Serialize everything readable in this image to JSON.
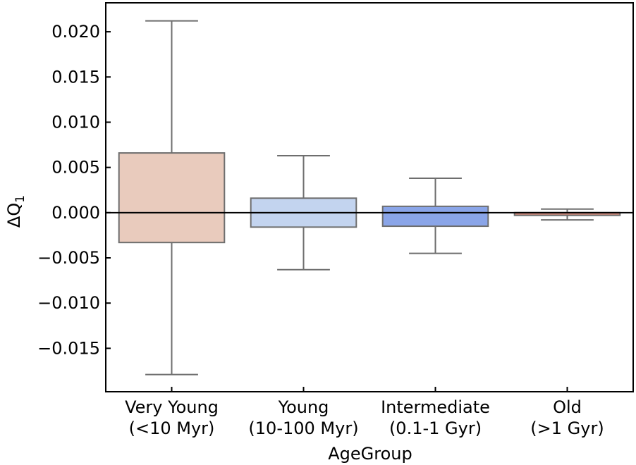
{
  "chart_data": {
    "type": "box",
    "xlabel": "AgeGroup",
    "ylabel": "ΔQ",
    "ylabel_subscript": "1",
    "ylim": [
      -0.0198,
      0.0232
    ],
    "yticks": [
      -0.015,
      -0.01,
      -0.005,
      0.0,
      0.005,
      0.01,
      0.015,
      0.02
    ],
    "ytick_labels": [
      "−0.015",
      "−0.010",
      "−0.005",
      "0.000",
      "0.005",
      "0.010",
      "0.015",
      "0.020"
    ],
    "reference_line": 0.0,
    "categories": [
      {
        "line1": "Very Young",
        "line2": "(<10 Myr)"
      },
      {
        "line1": "Young",
        "line2": "(10-100 Myr)"
      },
      {
        "line1": "Intermediate",
        "line2": "(0.1-1 Gyr)"
      },
      {
        "line1": "Old",
        "line2": "(>1 Gyr)"
      }
    ],
    "boxes": [
      {
        "whisker_low": -0.0179,
        "q1": -0.0033,
        "median": 0.0,
        "q3": 0.0066,
        "whisker_high": 0.0212,
        "color": "#e9cbbd"
      },
      {
        "whisker_low": -0.0063,
        "q1": -0.0016,
        "median": 0.0,
        "q3": 0.0016,
        "whisker_high": 0.0063,
        "color": "#c3d4ef"
      },
      {
        "whisker_low": -0.0045,
        "q1": -0.0015,
        "median": 0.0,
        "q3": 0.0007,
        "whisker_high": 0.0038,
        "color": "#8aa5e8"
      },
      {
        "whisker_low": -0.0008,
        "q1": -0.0003,
        "median": 0.0,
        "q3": 0.0,
        "whisker_high": 0.0004,
        "color": "#d98d7e"
      }
    ],
    "grid": false,
    "legend": "none"
  }
}
